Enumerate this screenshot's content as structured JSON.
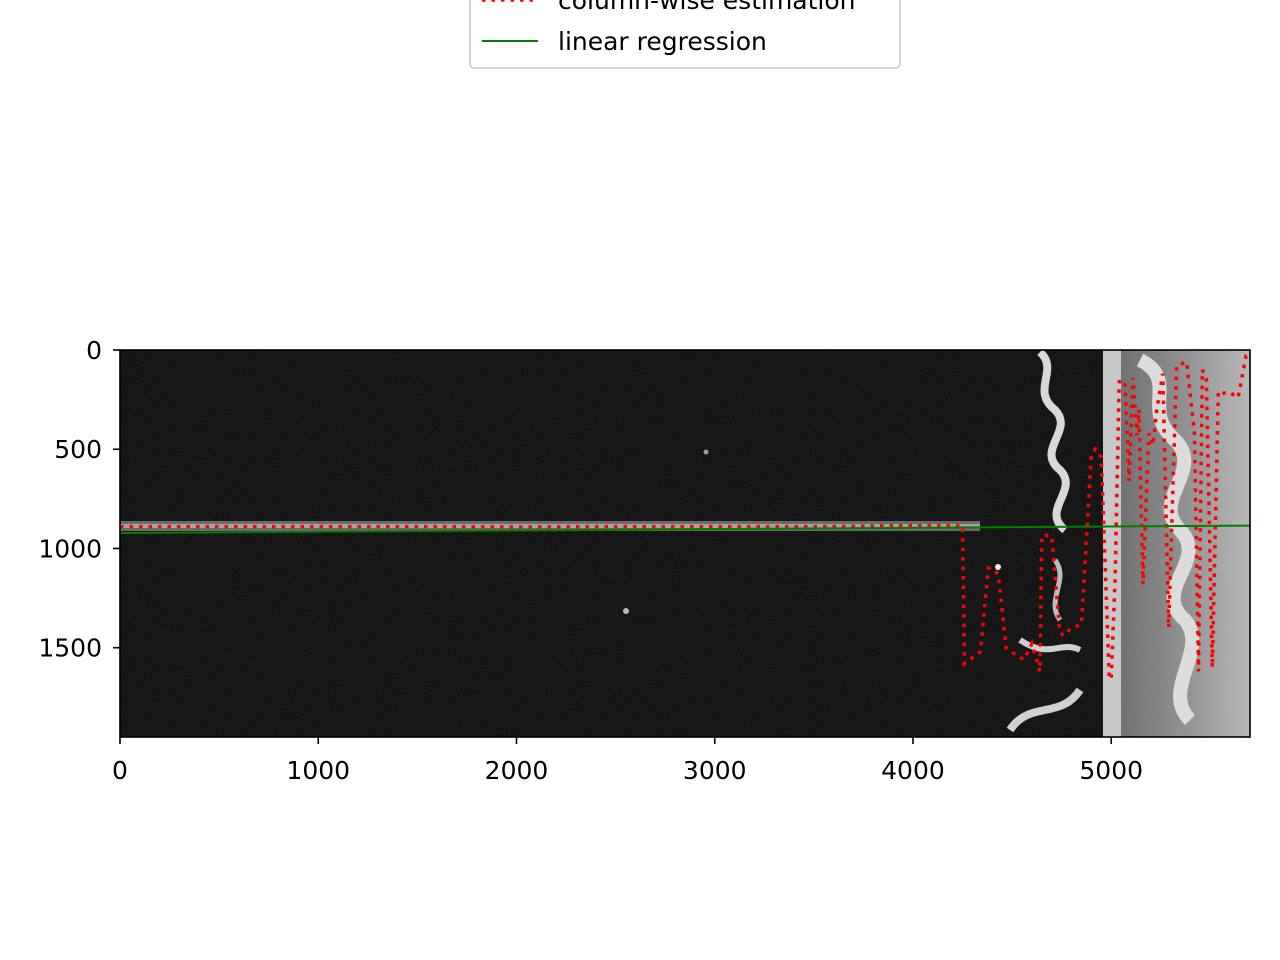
{
  "chart_data": {
    "type": "line",
    "title": "",
    "xlabel": "",
    "ylabel": "",
    "xlim": [
      0,
      5700
    ],
    "ylim": [
      1950,
      0
    ],
    "y_axis_inverted": true,
    "background": "grayscale image",
    "grid": false,
    "legend_placement": "upper-center",
    "x_ticks": [
      0,
      1000,
      2000,
      3000,
      4000,
      5000
    ],
    "y_ticks": [
      0,
      500,
      1000,
      1500
    ],
    "x_tick_labels": [
      "0",
      "1000",
      "2000",
      "3000",
      "4000",
      "5000"
    ],
    "y_tick_labels": [
      "0",
      "500",
      "1000",
      "1500"
    ],
    "series": [
      {
        "name": "column-wise estimation",
        "style": "dotted",
        "color": "#ff0000",
        "x": [
          0,
          500,
          1000,
          1500,
          2000,
          2500,
          3000,
          3500,
          4000,
          4200,
          4250,
          4260,
          4300,
          4340,
          4380,
          4400,
          4430,
          4470,
          4500,
          4520,
          4560,
          4600,
          4640,
          4650,
          4660,
          4700,
          4740,
          4760,
          4790,
          4850,
          4900,
          4920,
          4950,
          4990,
          5000,
          5020,
          5040,
          5060,
          5070,
          5090,
          5110,
          5130,
          5140,
          5160,
          5190,
          5210,
          5230,
          5260,
          5290,
          5330,
          5380,
          5420,
          5440,
          5460,
          5480,
          5510,
          5540,
          5560,
          5590,
          5640,
          5680,
          5700
        ],
        "y": [
          890,
          890,
          890,
          890,
          892,
          890,
          890,
          890,
          885,
          885,
          885,
          1580,
          1550,
          1520,
          1100,
          1100,
          1130,
          1500,
          1520,
          1540,
          1560,
          1480,
          1620,
          940,
          930,
          940,
          1420,
          1440,
          1410,
          1380,
          520,
          500,
          540,
          1650,
          1660,
          1140,
          160,
          150,
          180,
          660,
          140,
          430,
          300,
          1180,
          420,
          480,
          300,
          120,
          1400,
          80,
          60,
          420,
          1620,
          100,
          150,
          1600,
          210,
          220,
          210,
          240,
          30,
          25
        ]
      },
      {
        "name": "linear regression",
        "style": "solid",
        "color": "#008000",
        "x": [
          0,
          5700
        ],
        "y": [
          922,
          885
        ]
      }
    ]
  },
  "legend": {
    "entries": [
      {
        "label": "column-wise estimation",
        "color": "#ff0000",
        "style": "dotted"
      },
      {
        "label": "linear regression",
        "color": "#008000",
        "style": "solid"
      }
    ]
  }
}
